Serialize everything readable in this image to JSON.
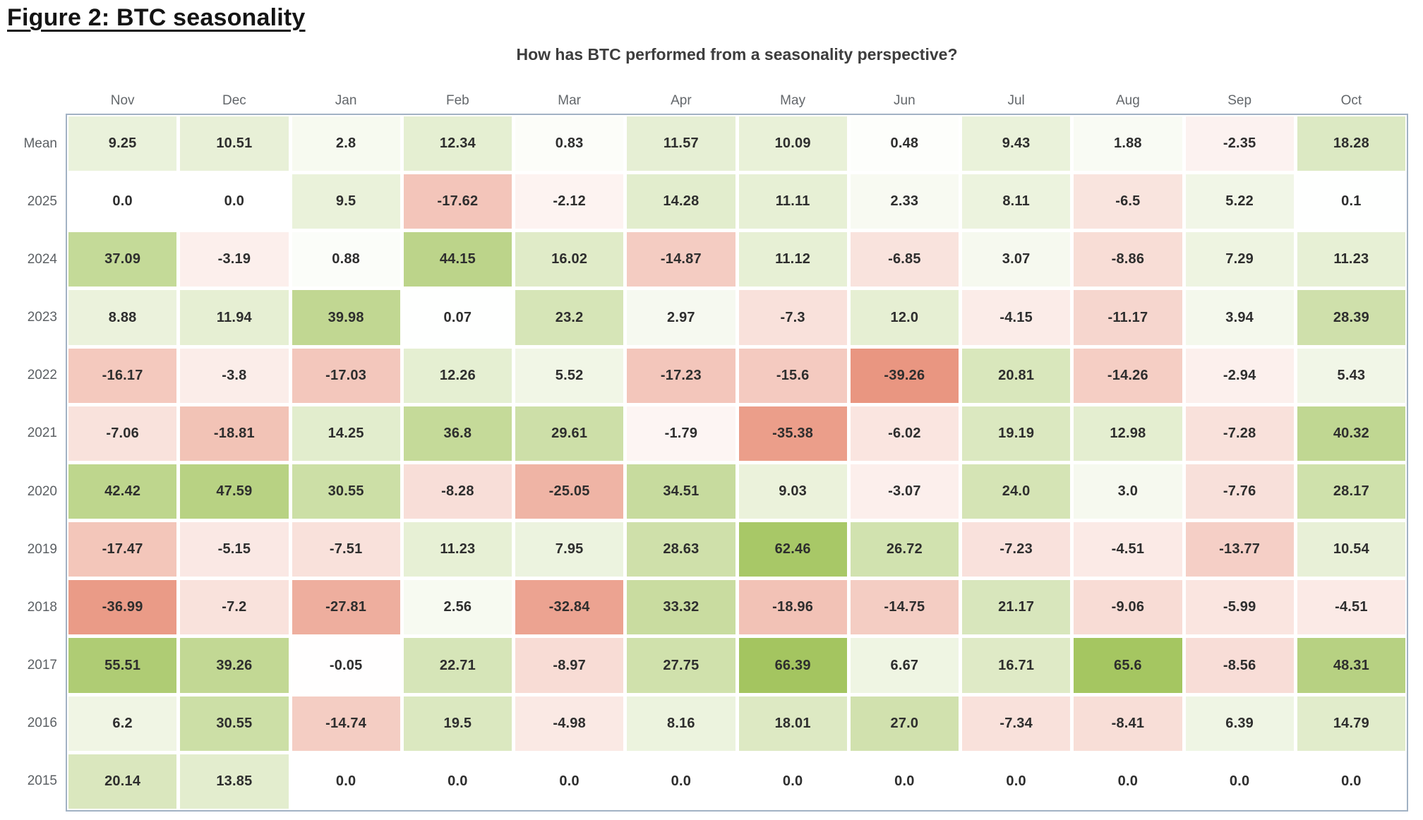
{
  "figure_title": "Figure 2: BTC seasonality",
  "chart_data": {
    "type": "heatmap",
    "title": "How has BTC performed from a seasonality perspective?",
    "columns": [
      "Nov",
      "Dec",
      "Jan",
      "Feb",
      "Mar",
      "Apr",
      "May",
      "Jun",
      "Jul",
      "Aug",
      "Sep",
      "Oct"
    ],
    "rows": [
      "Mean",
      "2025",
      "2024",
      "2023",
      "2022",
      "2021",
      "2020",
      "2019",
      "2018",
      "2017",
      "2016",
      "2015"
    ],
    "values": [
      [
        "9.25",
        "10.51",
        "2.8",
        "12.34",
        "0.83",
        "11.57",
        "10.09",
        "0.48",
        "9.43",
        "1.88",
        "-2.35",
        "18.28"
      ],
      [
        "0.0",
        "0.0",
        "9.5",
        "-17.62",
        "-2.12",
        "14.28",
        "11.11",
        "2.33",
        "8.11",
        "-6.5",
        "5.22",
        "0.1"
      ],
      [
        "37.09",
        "-3.19",
        "0.88",
        "44.15",
        "16.02",
        "-14.87",
        "11.12",
        "-6.85",
        "3.07",
        "-8.86",
        "7.29",
        "11.23"
      ],
      [
        "8.88",
        "11.94",
        "39.98",
        "0.07",
        "23.2",
        "2.97",
        "-7.3",
        "12.0",
        "-4.15",
        "-11.17",
        "3.94",
        "28.39"
      ],
      [
        "-16.17",
        "-3.8",
        "-17.03",
        "12.26",
        "5.52",
        "-17.23",
        "-15.6",
        "-39.26",
        "20.81",
        "-14.26",
        "-2.94",
        "5.43"
      ],
      [
        "-7.06",
        "-18.81",
        "14.25",
        "36.8",
        "29.61",
        "-1.79",
        "-35.38",
        "-6.02",
        "19.19",
        "12.98",
        "-7.28",
        "40.32"
      ],
      [
        "42.42",
        "47.59",
        "30.55",
        "-8.28",
        "-25.05",
        "34.51",
        "9.03",
        "-3.07",
        "24.0",
        "3.0",
        "-7.76",
        "28.17"
      ],
      [
        "-17.47",
        "-5.15",
        "-7.51",
        "11.23",
        "7.95",
        "28.63",
        "62.46",
        "26.72",
        "-7.23",
        "-4.51",
        "-13.77",
        "10.54"
      ],
      [
        "-36.99",
        "-7.2",
        "-27.81",
        "2.56",
        "-32.84",
        "33.32",
        "-18.96",
        "-14.75",
        "21.17",
        "-9.06",
        "-5.99",
        "-4.51"
      ],
      [
        "55.51",
        "39.26",
        "-0.05",
        "22.71",
        "-8.97",
        "27.75",
        "66.39",
        "6.67",
        "16.71",
        "65.6",
        "-8.56",
        "48.31"
      ],
      [
        "6.2",
        "30.55",
        "-14.74",
        "19.5",
        "-4.98",
        "8.16",
        "18.01",
        "27.0",
        "-7.34",
        "-8.41",
        "6.39",
        "14.79"
      ],
      [
        "20.14",
        "13.85",
        "0.0",
        "0.0",
        "0.0",
        "0.0",
        "0.0",
        "0.0",
        "0.0",
        "0.0",
        "0.0",
        "0.0"
      ]
    ],
    "color_scale": {
      "positive_end": "#a4c560",
      "negative_end": "#e99681",
      "zero": "#ffffff",
      "positive_limit": 66.39,
      "negative_limit": -39.26,
      "plot_border": "#a2b2c4"
    }
  }
}
